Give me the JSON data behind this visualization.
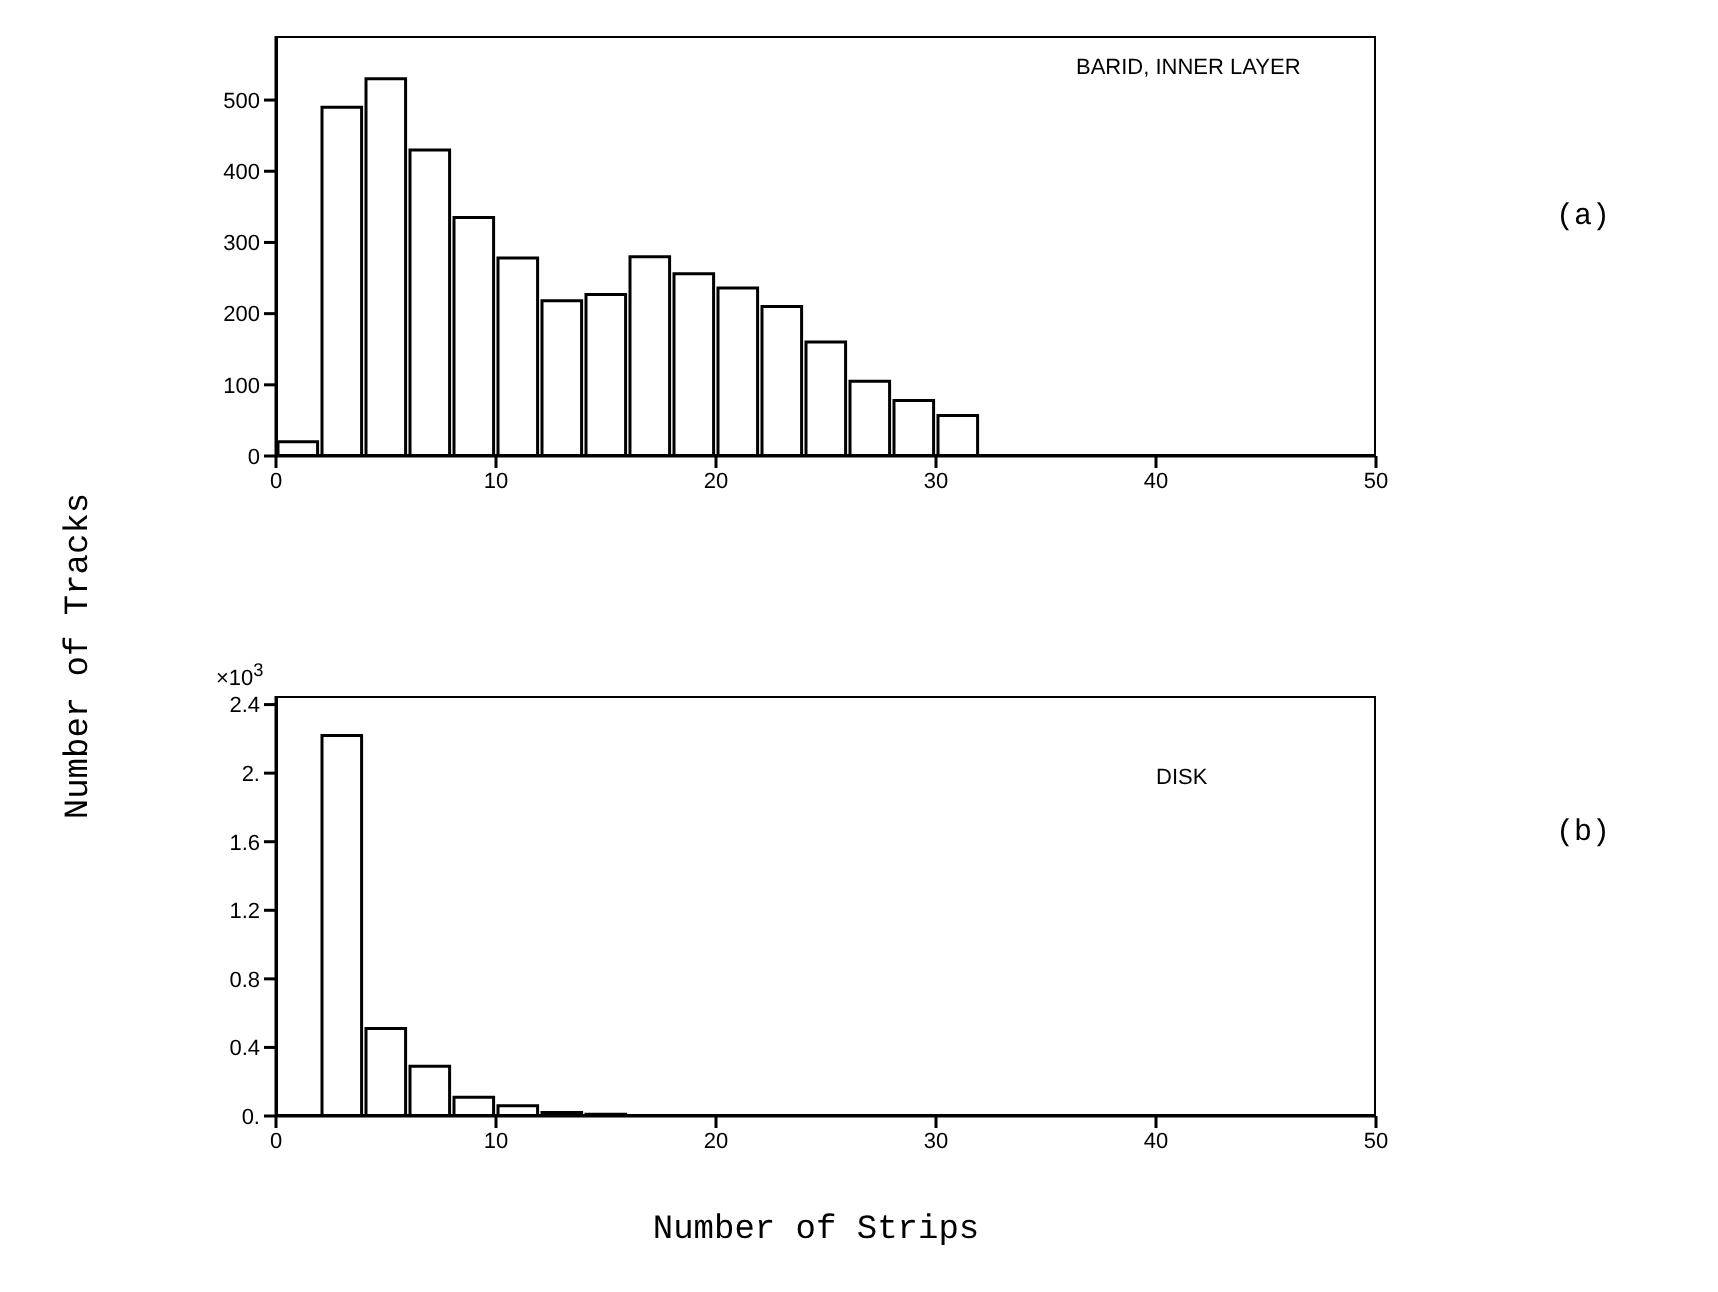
{
  "chart_data": [
    {
      "type": "histogram",
      "ylabel": "Number of Tracks",
      "annotations": [
        "BARID, INNER LAYER",
        "(a)"
      ],
      "bins": [
        0,
        2,
        4,
        6,
        8,
        10,
        12,
        14,
        16,
        18,
        20,
        22,
        24,
        26,
        28,
        30,
        32
      ],
      "values": [
        20,
        490,
        530,
        430,
        335,
        278,
        218,
        227,
        280,
        256,
        236,
        210,
        160,
        105,
        78,
        57
      ],
      "color": "#000000",
      "xlim": [
        0,
        50
      ],
      "xticks": [
        0,
        10,
        20,
        30,
        40,
        50
      ],
      "ylim": [
        0,
        590
      ],
      "yticks": [
        0,
        100,
        200,
        300,
        400,
        500
      ],
      "grid": false,
      "legend": false
    },
    {
      "type": "histogram",
      "xlabel": "Number of Strips",
      "annotations": [
        "DISK",
        "(b)",
        "×10$^{3}$"
      ],
      "bins": [
        0,
        2,
        4,
        6,
        8,
        10,
        12,
        14,
        16
      ],
      "values": [
        0,
        2.22,
        0.51,
        0.29,
        0.11,
        0.06,
        0.02,
        0.01
      ],
      "color": "#000000",
      "xlim": [
        0,
        50
      ],
      "xticks": [
        0,
        10,
        20,
        30,
        40,
        50
      ],
      "ylim": [
        0,
        2.45
      ],
      "yticks": [
        {
          "value": 0,
          "label": "0."
        },
        {
          "value": 0.4,
          "label": "0.4"
        },
        {
          "value": 0.8,
          "label": "0.8"
        },
        {
          "value": 1.2,
          "label": "1.2"
        },
        {
          "value": 1.6,
          "label": "1.6"
        },
        {
          "value": 2,
          "label": "2."
        },
        {
          "value": 2.4,
          "label": "2.4"
        }
      ],
      "grid": false,
      "legend": false
    }
  ]
}
